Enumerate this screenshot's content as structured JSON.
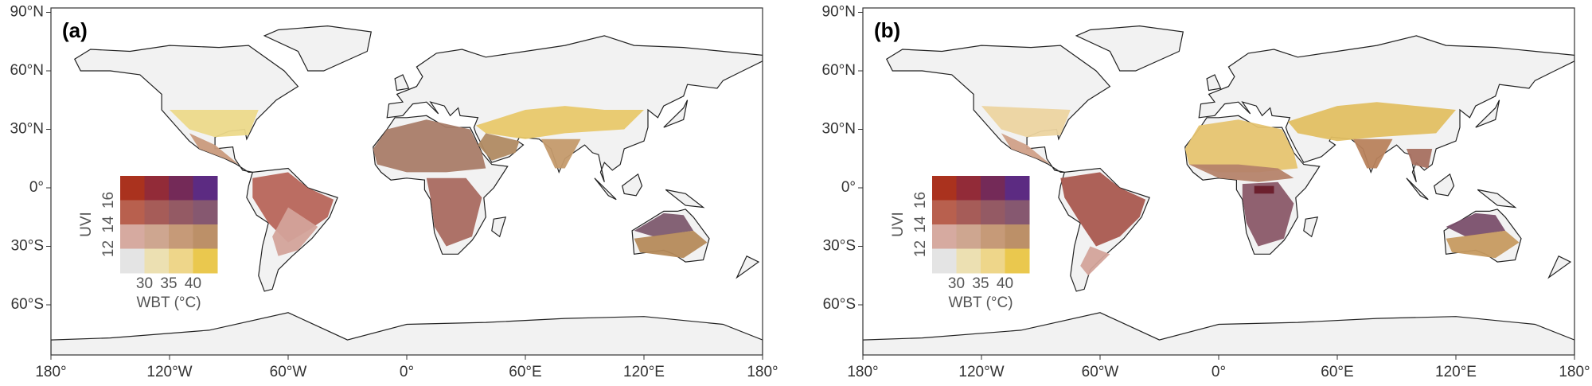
{
  "panels": [
    {
      "label": "(a)"
    },
    {
      "label": "(b)"
    }
  ],
  "latitude_labels": [
    "90°N",
    "60°N",
    "30°N",
    "0°",
    "30°S",
    "60°S"
  ],
  "longitude_labels": [
    "180°",
    "120°W",
    "60°W",
    "0°",
    "60°E",
    "120°E",
    "180°"
  ],
  "legend": {
    "y_title": "UVI",
    "y_labels": [
      "12",
      "14",
      "16"
    ],
    "x_title": "WBT (°C)",
    "x_labels": [
      "30",
      "35",
      "40"
    ]
  }
}
